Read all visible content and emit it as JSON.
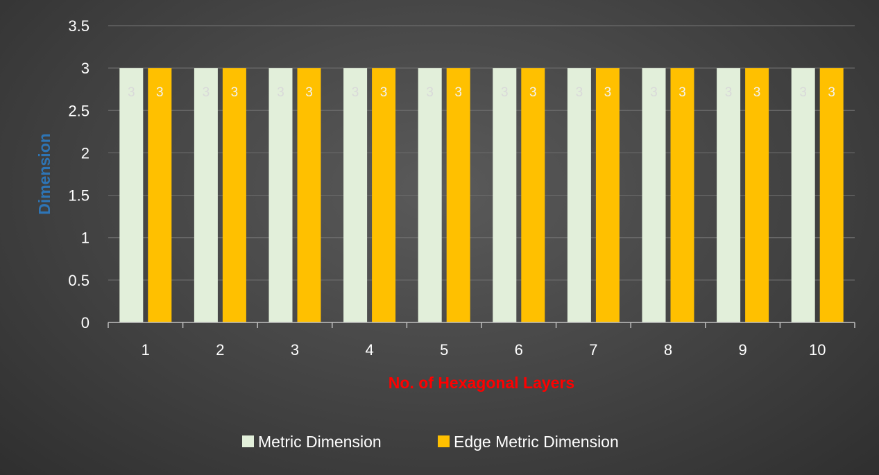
{
  "chart_data": {
    "type": "bar",
    "title": "",
    "xlabel": "No. of Hexagonal Layers",
    "ylabel": "Dimension",
    "categories": [
      "1",
      "2",
      "3",
      "4",
      "5",
      "6",
      "7",
      "8",
      "9",
      "10"
    ],
    "series": [
      {
        "name": "Metric Dimension",
        "values": [
          3,
          3,
          3,
          3,
          3,
          3,
          3,
          3,
          3,
          3
        ],
        "color": "#e2efda",
        "label_color": "#d9d9d9"
      },
      {
        "name": "Edge Metric Dimension",
        "values": [
          3,
          3,
          3,
          3,
          3,
          3,
          3,
          3,
          3,
          3
        ],
        "color": "#ffc000",
        "label_color": "#f2f2f2"
      }
    ],
    "ylim": [
      0,
      3.5
    ],
    "y_ticks": [
      "0",
      "0.5",
      "1",
      "1.5",
      "2",
      "2.5",
      "3",
      "3.5"
    ],
    "grid": true,
    "data_labels": true,
    "legend_position": "bottom",
    "xlabel_color": "#ff0000",
    "ylabel_color": "#2e75b6"
  }
}
